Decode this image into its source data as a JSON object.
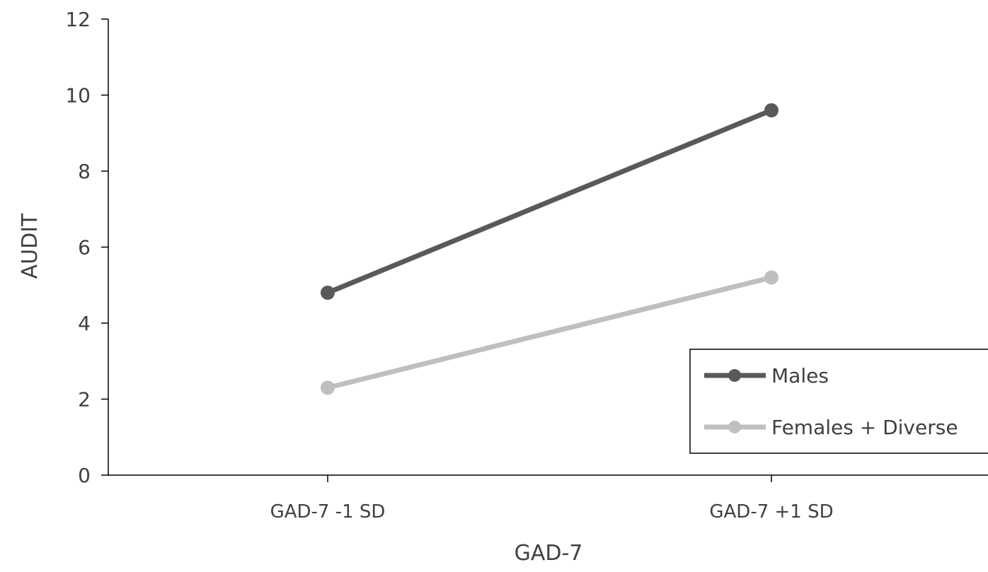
{
  "chart_data": {
    "type": "line",
    "title": "",
    "xlabel": "GAD-7",
    "ylabel": "AUDIT",
    "categories": [
      "GAD-7 -1 SD",
      "GAD-7 +1 SD"
    ],
    "ylim": [
      0,
      12
    ],
    "yticks": [
      0,
      2,
      4,
      6,
      8,
      10,
      12
    ],
    "grid": false,
    "legend_position": "bottom-right",
    "series": [
      {
        "name": "Males",
        "values": [
          4.8,
          9.6
        ],
        "color": "#595959"
      },
      {
        "name": "Females + Diverse",
        "values": [
          2.3,
          5.2
        ],
        "color": "#bfbfbf"
      }
    ]
  }
}
